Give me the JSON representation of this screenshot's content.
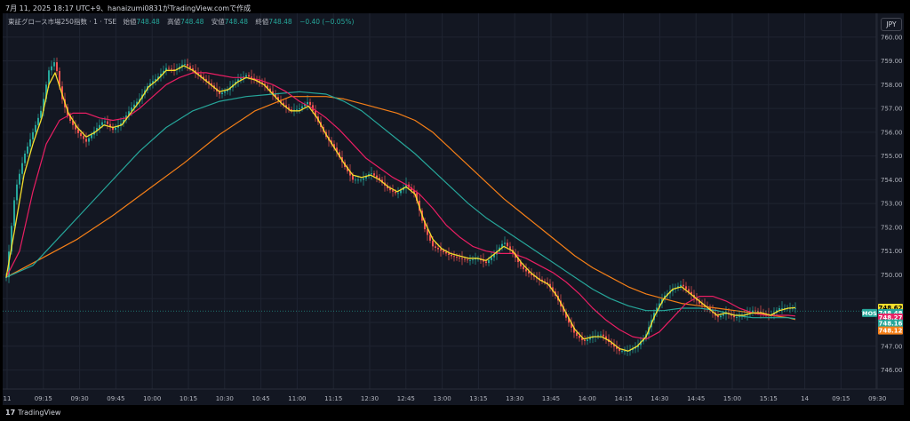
{
  "header": {
    "text": "7月 11, 2025 18:17 UTC+9、hanaizumi0831がTradingView.comで作成"
  },
  "title": {
    "symbol": "東証グロース市場250指数 · 1 · TSE",
    "open_label": "始値",
    "open": "748.48",
    "high_label": "高値",
    "high": "748.48",
    "low_label": "安値",
    "low": "748.48",
    "close_label": "終値",
    "close": "748.48",
    "change": "−0.40 (−0.05%)"
  },
  "currency": "JPY",
  "footer": {
    "logo_mark": "17",
    "logo_text": "TradingView"
  },
  "chart_data": {
    "type": "line",
    "x_ticks": [
      "11",
      "09:15",
      "09:30",
      "09:45",
      "10:00",
      "10:15",
      "10:30",
      "10:45",
      "11:00",
      "11:15",
      "12:30",
      "12:45",
      "13:00",
      "13:15",
      "13:30",
      "13:45",
      "14:00",
      "14:15",
      "14:30",
      "14:45",
      "15:00",
      "15:15",
      "14",
      "09:15",
      "09:30"
    ],
    "y_ticks": [
      746,
      747,
      748,
      749,
      750,
      751,
      752,
      753,
      754,
      755,
      756,
      757,
      758,
      759,
      760
    ],
    "y_tick_labels": [
      "746.00",
      "747.00",
      "",
      "",
      "750.00",
      "751.00",
      "752.00",
      "753.00",
      "754.00",
      "755.00",
      "756.00",
      "757.00",
      "758.00",
      "759.00",
      "760.00"
    ],
    "ylim": [
      745.2,
      761.0
    ],
    "price_x": [
      0,
      10,
      20,
      30,
      40,
      48,
      55,
      62,
      70,
      80,
      90,
      100,
      110,
      120,
      130,
      140,
      150,
      160,
      170,
      180,
      190,
      200,
      210,
      220,
      230,
      240,
      250,
      260,
      270,
      280,
      290,
      300,
      310,
      320,
      330,
      340,
      350,
      360,
      370,
      380,
      390,
      400,
      410,
      420,
      430,
      440,
      450,
      460,
      470,
      480,
      490,
      500,
      510,
      520,
      530,
      540,
      550,
      560,
      570,
      580,
      590,
      600,
      610,
      620,
      630,
      640,
      650,
      660,
      670,
      680,
      690,
      700,
      710,
      720,
      730,
      740,
      750,
      760,
      770,
      780,
      790,
      800,
      810,
      820,
      830,
      840,
      850,
      860,
      870,
      880,
      888
    ],
    "price": [
      749.9,
      753.5,
      755.0,
      756.0,
      757.0,
      758.6,
      759.0,
      757.5,
      756.6,
      756.0,
      755.6,
      756.1,
      756.5,
      756.1,
      756.4,
      757.0,
      757.4,
      758.0,
      758.3,
      758.7,
      758.6,
      758.9,
      758.6,
      758.3,
      758.0,
      757.6,
      757.8,
      758.2,
      758.4,
      758.2,
      758.0,
      757.6,
      757.2,
      756.9,
      757.0,
      757.3,
      756.5,
      755.8,
      755.3,
      754.6,
      754.0,
      754.0,
      754.3,
      754.0,
      753.6,
      753.4,
      753.8,
      753.4,
      752.0,
      751.2,
      751.0,
      750.8,
      750.7,
      750.6,
      750.7,
      750.5,
      750.9,
      751.4,
      750.9,
      750.3,
      750.0,
      749.8,
      749.6,
      749.0,
      748.2,
      747.5,
      747.2,
      747.4,
      747.5,
      747.1,
      746.8,
      746.8,
      747.0,
      747.5,
      748.5,
      749.1,
      749.4,
      749.6,
      749.2,
      748.8,
      748.6,
      748.2,
      748.4,
      748.2,
      748.3,
      748.5,
      748.4,
      748.3,
      748.6,
      748.6,
      748.6
    ],
    "series": [
      {
        "color": "#f5de2c",
        "x": [
          0,
          10,
          20,
          30,
          40,
          48,
          55,
          62,
          70,
          80,
          90,
          100,
          110,
          120,
          130,
          140,
          150,
          160,
          170,
          180,
          190,
          200,
          210,
          220,
          230,
          240,
          250,
          260,
          270,
          280,
          290,
          300,
          310,
          320,
          330,
          340,
          350,
          360,
          370,
          380,
          390,
          400,
          410,
          420,
          430,
          440,
          450,
          460,
          470,
          480,
          490,
          500,
          510,
          520,
          530,
          540,
          550,
          560,
          570,
          580,
          590,
          600,
          610,
          620,
          630,
          640,
          650,
          660,
          670,
          680,
          690,
          700,
          710,
          720,
          730,
          740,
          750,
          760,
          770,
          780,
          790,
          800,
          810,
          820,
          830,
          840,
          850,
          860,
          870,
          880,
          888
        ],
        "values": [
          749.9,
          752.0,
          754.2,
          755.5,
          756.6,
          758.0,
          758.5,
          757.7,
          756.8,
          756.2,
          755.8,
          756.0,
          756.3,
          756.2,
          756.3,
          756.8,
          757.3,
          757.9,
          758.2,
          758.6,
          758.6,
          758.8,
          758.6,
          758.3,
          758.0,
          757.7,
          757.8,
          758.1,
          758.3,
          758.2,
          758.0,
          757.6,
          757.2,
          756.9,
          756.9,
          757.1,
          756.6,
          755.9,
          755.3,
          754.7,
          754.2,
          754.1,
          754.2,
          754.0,
          753.7,
          753.5,
          753.7,
          753.4,
          752.3,
          751.5,
          751.1,
          750.9,
          750.8,
          750.7,
          750.7,
          750.6,
          750.9,
          751.2,
          751.0,
          750.5,
          750.1,
          749.8,
          749.6,
          749.1,
          748.4,
          747.7,
          747.3,
          747.4,
          747.4,
          747.2,
          746.9,
          746.8,
          747.0,
          747.4,
          748.3,
          749.0,
          749.4,
          749.5,
          749.2,
          748.9,
          748.6,
          748.3,
          748.4,
          748.3,
          748.3,
          748.4,
          748.4,
          748.3,
          748.5,
          748.6,
          748.62
        ]
      },
      {
        "color": "#e91e63",
        "x": [
          0,
          15,
          30,
          45,
          60,
          75,
          90,
          105,
          120,
          135,
          150,
          165,
          180,
          195,
          210,
          225,
          240,
          255,
          270,
          285,
          300,
          315,
          330,
          345,
          360,
          375,
          390,
          405,
          420,
          435,
          450,
          465,
          480,
          495,
          510,
          525,
          540,
          555,
          570,
          585,
          600,
          615,
          630,
          645,
          660,
          675,
          690,
          705,
          720,
          735,
          750,
          765,
          780,
          795,
          810,
          825,
          840,
          855,
          870,
          880,
          888
        ],
        "values": [
          749.9,
          751.0,
          753.5,
          755.5,
          756.5,
          756.8,
          756.8,
          756.6,
          756.5,
          756.6,
          757.0,
          757.5,
          758.0,
          758.3,
          758.5,
          758.5,
          758.4,
          758.3,
          758.3,
          758.2,
          758.0,
          757.7,
          757.3,
          757.0,
          756.6,
          756.1,
          755.5,
          754.9,
          754.5,
          754.1,
          753.8,
          753.4,
          752.8,
          752.1,
          751.6,
          751.2,
          751.0,
          750.9,
          750.9,
          750.7,
          750.4,
          750.1,
          749.7,
          749.2,
          748.6,
          748.1,
          747.7,
          747.4,
          747.3,
          747.6,
          748.2,
          748.8,
          749.1,
          749.1,
          748.9,
          748.6,
          748.4,
          748.3,
          748.3,
          748.3,
          748.27
        ]
      },
      {
        "color": "#26a69a",
        "x": [
          0,
          30,
          60,
          90,
          120,
          150,
          180,
          210,
          240,
          270,
          300,
          330,
          360,
          380,
          400,
          420,
          440,
          460,
          480,
          500,
          520,
          540,
          560,
          580,
          600,
          620,
          640,
          660,
          680,
          700,
          720,
          740,
          760,
          780,
          800,
          820,
          840,
          860,
          880,
          888
        ],
        "values": [
          749.9,
          750.4,
          751.6,
          752.8,
          754.0,
          755.2,
          756.2,
          756.9,
          757.3,
          757.5,
          757.6,
          757.7,
          757.6,
          757.3,
          756.9,
          756.3,
          755.7,
          755.1,
          754.4,
          753.7,
          753.0,
          752.4,
          751.9,
          751.4,
          750.9,
          750.4,
          749.9,
          749.4,
          749.0,
          748.7,
          748.5,
          748.5,
          748.6,
          748.6,
          748.5,
          748.3,
          748.2,
          748.2,
          748.2,
          748.16
        ]
      },
      {
        "color": "#f57f17",
        "x": [
          0,
          40,
          80,
          120,
          160,
          200,
          240,
          280,
          320,
          360,
          380,
          400,
          420,
          440,
          460,
          480,
          500,
          520,
          540,
          560,
          580,
          600,
          620,
          640,
          660,
          680,
          700,
          720,
          740,
          760,
          780,
          800,
          820,
          840,
          860,
          880,
          888
        ],
        "values": [
          749.9,
          750.7,
          751.5,
          752.5,
          753.6,
          754.7,
          755.9,
          756.9,
          757.5,
          757.5,
          757.4,
          757.2,
          757.0,
          756.8,
          756.5,
          756.0,
          755.3,
          754.6,
          753.9,
          753.2,
          752.6,
          752.0,
          751.4,
          750.8,
          750.3,
          749.9,
          749.5,
          749.2,
          749.0,
          748.8,
          748.7,
          748.6,
          748.5,
          748.4,
          748.3,
          748.2,
          748.12
        ]
      }
    ],
    "price_labels": [
      {
        "text": "748.62",
        "bg": "#f5de2c",
        "fg": "#000000",
        "y": 748.62
      },
      {
        "text": "748.48",
        "bg": "#26a69a",
        "fg": "#ffffff",
        "y": 748.4,
        "tag": "MOS"
      },
      {
        "text": "748.27",
        "bg": "#e91e63",
        "fg": "#ffffff",
        "y": 748.2
      },
      {
        "text": "748.16",
        "bg": "#26a69a",
        "fg": "#ffffff",
        "y": 747.96
      },
      {
        "text": "748.12",
        "bg": "#f57f17",
        "fg": "#ffffff",
        "y": 747.66
      }
    ],
    "current_price": 748.48
  }
}
